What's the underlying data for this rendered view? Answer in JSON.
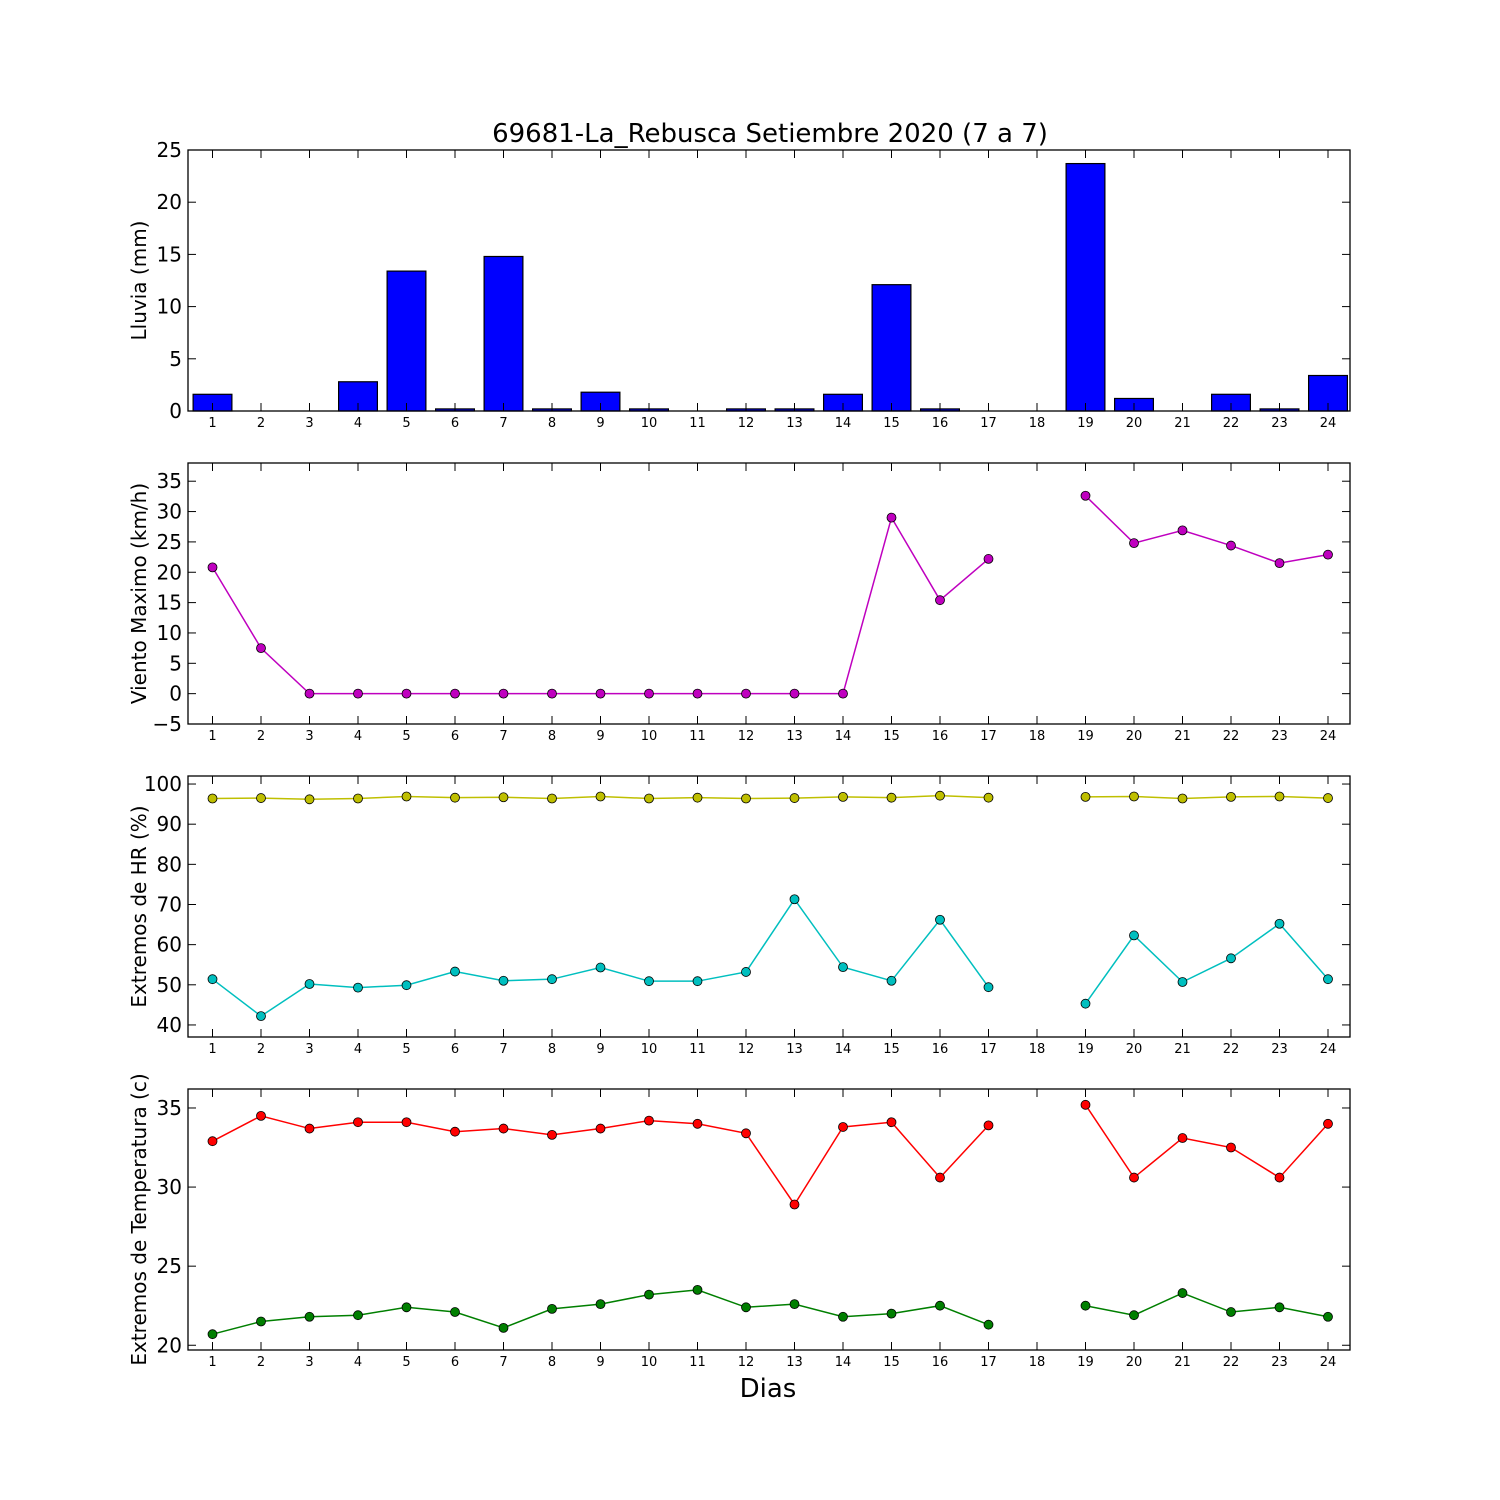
{
  "title": "69681-La_Rebusca Setiembre 2020  (7 a 7)",
  "xlabel": "Dias",
  "chart_data": [
    {
      "type": "bar",
      "ylabel": "Lluvia (mm)",
      "ylim": [
        0,
        25
      ],
      "yticks": [
        0,
        5,
        10,
        15,
        20,
        25
      ],
      "x_categories": [
        "1",
        "2",
        "3",
        "4",
        "5",
        "6",
        "7",
        "8",
        "9",
        "10",
        "11",
        "12",
        "13",
        "14",
        "15",
        "16",
        "17",
        "18",
        "19",
        "20",
        "21",
        "22",
        "23",
        "24"
      ],
      "series": [
        {
          "color": "#0000ff",
          "values": [
            1.6,
            0,
            0,
            2.8,
            13.4,
            0.2,
            14.8,
            0.2,
            1.8,
            0.2,
            0,
            0.2,
            0.2,
            1.6,
            12.1,
            0.2,
            0,
            null,
            23.7,
            1.2,
            0,
            1.6,
            0.2,
            3.4
          ]
        }
      ]
    },
    {
      "type": "line",
      "ylabel": "Viento Maximo (km/h)",
      "ylim": [
        -5,
        38
      ],
      "yticks": [
        -5,
        0,
        5,
        10,
        15,
        20,
        25,
        30,
        35
      ],
      "x_categories": [
        "1",
        "2",
        "3",
        "4",
        "5",
        "6",
        "7",
        "8",
        "9",
        "10",
        "11",
        "12",
        "13",
        "14",
        "15",
        "16",
        "17",
        "18",
        "19",
        "20",
        "21",
        "22",
        "23",
        "24"
      ],
      "series": [
        {
          "color": "#bf00bf",
          "values": [
            20.8,
            7.5,
            0,
            0,
            0,
            0,
            0,
            0,
            0,
            0,
            0,
            0,
            0,
            0,
            29,
            15.4,
            22.2,
            null,
            32.6,
            24.8,
            26.9,
            24.4,
            21.5,
            22.9
          ]
        }
      ]
    },
    {
      "type": "line",
      "ylabel": "Extremos de HR (%)",
      "ylim": [
        37,
        102
      ],
      "yticks": [
        40,
        50,
        60,
        70,
        80,
        90,
        100
      ],
      "x_categories": [
        "1",
        "2",
        "3",
        "4",
        "5",
        "6",
        "7",
        "8",
        "9",
        "10",
        "11",
        "12",
        "13",
        "14",
        "15",
        "16",
        "17",
        "18",
        "19",
        "20",
        "21",
        "22",
        "23",
        "24"
      ],
      "series": [
        {
          "color": "#bfbf00",
          "values": [
            96.4,
            96.5,
            96.2,
            96.4,
            96.9,
            96.6,
            96.7,
            96.4,
            96.9,
            96.4,
            96.6,
            96.4,
            96.5,
            96.8,
            96.6,
            97.1,
            96.6,
            null,
            96.8,
            96.9,
            96.4,
            96.8,
            96.9,
            96.5
          ]
        },
        {
          "color": "#00bfbf",
          "values": [
            51.4,
            42.2,
            50.2,
            49.3,
            49.9,
            53.3,
            51.0,
            51.4,
            54.3,
            50.9,
            50.9,
            53.2,
            71.3,
            54.4,
            51.0,
            66.2,
            49.4,
            null,
            45.3,
            62.3,
            50.7,
            56.6,
            65.2,
            51.4
          ]
        }
      ]
    },
    {
      "type": "line",
      "ylabel": "Extremos de Temperatura (c)",
      "ylim": [
        19.7,
        36.2
      ],
      "yticks": [
        20,
        25,
        30,
        35
      ],
      "x_categories": [
        "1",
        "2",
        "3",
        "4",
        "5",
        "6",
        "7",
        "8",
        "9",
        "10",
        "11",
        "12",
        "13",
        "14",
        "15",
        "16",
        "17",
        "18",
        "19",
        "20",
        "21",
        "22",
        "23",
        "24"
      ],
      "series": [
        {
          "color": "#ff0000",
          "values": [
            32.9,
            34.5,
            33.7,
            34.1,
            34.1,
            33.5,
            33.7,
            33.3,
            33.7,
            34.2,
            34.0,
            33.4,
            28.9,
            33.8,
            34.1,
            30.6,
            33.9,
            null,
            35.2,
            30.6,
            33.1,
            32.5,
            30.6,
            34.0
          ]
        },
        {
          "color": "#007f00",
          "values": [
            20.7,
            21.5,
            21.8,
            21.9,
            22.4,
            22.1,
            21.1,
            22.3,
            22.6,
            23.2,
            23.5,
            22.4,
            22.6,
            21.8,
            22.0,
            22.5,
            21.3,
            null,
            22.5,
            21.9,
            23.3,
            22.1,
            22.4,
            21.8
          ]
        }
      ]
    }
  ]
}
